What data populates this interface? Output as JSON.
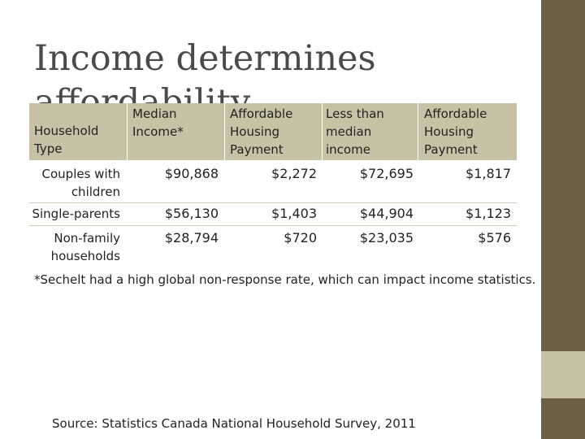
{
  "title": "Income determines affordability",
  "table": {
    "headers": [
      "Household Type",
      "Median Income*",
      "Affordable Housing Payment",
      "Less than median income",
      "Affordable Housing Payment"
    ],
    "rows": [
      {
        "type": "Couples with children",
        "median": "$90,868",
        "payment": "$2,272",
        "less": "$72,695",
        "payment2": "$1,817"
      },
      {
        "type": "Single-parents",
        "median": "$56,130",
        "payment": "$1,403",
        "less": "$44,904",
        "payment2": "$1,123"
      },
      {
        "type": "Non-family households",
        "median": "$28,794",
        "payment": "$720",
        "less": "$23,035",
        "payment2": "$576"
      }
    ]
  },
  "footnote": "*Sechelt had a high global non-response rate, which can impact income statistics.",
  "source": "Source: Statistics Canada National Household Survey, 2011",
  "colors": {
    "band": "#6c5f46",
    "band_accent": "#c7c1a6",
    "header_fill": "#c7c1a6"
  }
}
